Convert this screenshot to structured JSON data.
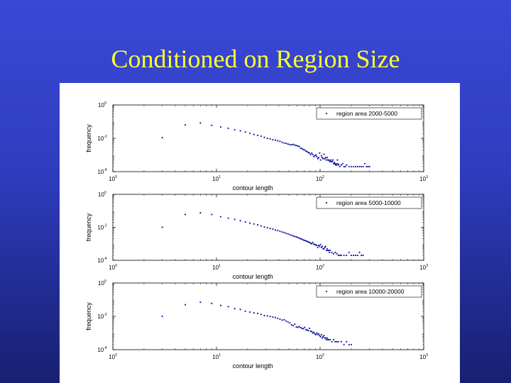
{
  "slide": {
    "title": "Conditioned on Region Size"
  },
  "colors": {
    "marker": "#1a1aa0",
    "axis": "#000000",
    "background_top": "#3a49d6",
    "title": "#ffff33"
  },
  "chart_data": [
    {
      "type": "scatter",
      "scale": "log-log",
      "xlabel": "contour length",
      "ylabel": "frequency",
      "xlim": [
        1,
        1000
      ],
      "ylim": [
        0.0001,
        1
      ],
      "xticks": [
        {
          "base": "10",
          "exp": "0"
        },
        {
          "base": "10",
          "exp": "1"
        },
        {
          "base": "10",
          "exp": "2"
        },
        {
          "base": "10",
          "exp": "3"
        }
      ],
      "yticks": [
        {
          "base": "10",
          "exp": "0"
        },
        {
          "base": "10",
          "exp": "-2"
        },
        {
          "base": "10",
          "exp": "-4"
        }
      ],
      "legend": {
        "label": "region area 2000-5000",
        "location": "top-right"
      },
      "series": [
        {
          "name": "region area 2000-5000",
          "x": [
            3,
            5,
            7,
            9,
            11,
            13,
            15,
            17,
            19,
            21,
            23,
            25,
            27,
            29,
            31,
            33,
            35,
            37,
            39,
            41,
            43,
            45,
            47,
            49,
            51,
            53,
            55,
            57,
            59,
            61,
            63,
            65,
            67,
            69,
            71,
            73,
            75,
            77,
            79,
            81,
            83,
            85,
            87,
            89,
            91,
            93,
            95,
            97,
            99,
            101,
            103,
            105,
            107,
            109,
            111,
            113,
            115,
            117,
            119,
            121,
            123,
            125,
            127,
            129,
            131,
            133,
            135,
            137,
            139,
            141,
            143,
            145,
            147,
            149,
            151,
            155,
            160,
            165,
            170,
            175,
            180,
            190,
            200,
            210,
            220,
            230,
            240,
            250,
            260,
            270,
            280,
            290,
            300
          ],
          "y": [
            0.011,
            0.063,
            0.083,
            0.06,
            0.048,
            0.04,
            0.033,
            0.028,
            0.024,
            0.02,
            0.017,
            0.015,
            0.0135,
            0.0115,
            0.01,
            0.0092,
            0.0082,
            0.0078,
            0.0071,
            0.0066,
            0.0057,
            0.0052,
            0.005,
            0.0045,
            0.0042,
            0.0041,
            0.0043,
            0.0039,
            0.0037,
            0.0034,
            0.0032,
            0.0025,
            0.0024,
            0.0021,
            0.002,
            0.0017,
            0.0016,
            0.0014,
            0.0013,
            0.00105,
            0.0013,
            0.00105,
            0.0008,
            0.0009,
            0.001,
            0.0008,
            0.0006,
            0.0007,
            0.0013,
            0.0005,
            0.0009,
            0.0007,
            0.0006,
            0.0011,
            0.0006,
            0.0007,
            0.0005,
            0.0007,
            0.0005,
            0.0005,
            0.00045,
            0.0004,
            0.0005,
            0.0004,
            0.0004,
            0.0005,
            0.0003,
            0.00035,
            0.0003,
            0.00025,
            0.0003,
            0.00025,
            0.0005,
            0.0003,
            0.00025,
            0.0002,
            0.00025,
            0.0003,
            0.0002,
            0.0002,
            0.00025,
            0.0002,
            0.0002,
            0.0002,
            0.0002,
            0.0002,
            0.0002,
            0.0002,
            0.0002,
            0.0003,
            0.0002,
            0.0002,
            0.0002
          ]
        }
      ]
    },
    {
      "type": "scatter",
      "scale": "log-log",
      "xlabel": "contour length",
      "ylabel": "frequency",
      "xlim": [
        1,
        1000
      ],
      "ylim": [
        0.0001,
        1
      ],
      "xticks": [
        {
          "base": "10",
          "exp": "0"
        },
        {
          "base": "10",
          "exp": "1"
        },
        {
          "base": "10",
          "exp": "2"
        },
        {
          "base": "10",
          "exp": "3"
        }
      ],
      "yticks": [
        {
          "base": "10",
          "exp": "0"
        },
        {
          "base": "10",
          "exp": "-2"
        },
        {
          "base": "10",
          "exp": "-4"
        }
      ],
      "legend": {
        "label": "region area 5000-10000",
        "location": "top-right"
      },
      "series": [
        {
          "name": "region area 5000-10000",
          "x": [
            3,
            5,
            7,
            9,
            11,
            13,
            15,
            17,
            19,
            21,
            23,
            25,
            27,
            29,
            31,
            33,
            35,
            37,
            39,
            41,
            43,
            45,
            47,
            49,
            51,
            53,
            55,
            57,
            59,
            61,
            63,
            65,
            67,
            69,
            71,
            73,
            75,
            77,
            79,
            81,
            83,
            85,
            87,
            89,
            91,
            93,
            95,
            97,
            99,
            101,
            103,
            105,
            107,
            109,
            111,
            113,
            115,
            117,
            119,
            121,
            123,
            125,
            130,
            135,
            140,
            145,
            150,
            155,
            160,
            170,
            180,
            190,
            200,
            210,
            220,
            230,
            240,
            250,
            260
          ],
          "y": [
            0.01,
            0.06,
            0.075,
            0.06,
            0.044,
            0.036,
            0.03,
            0.025,
            0.021,
            0.018,
            0.016,
            0.014,
            0.012,
            0.0105,
            0.0095,
            0.0085,
            0.0078,
            0.007,
            0.0064,
            0.0058,
            0.0052,
            0.0048,
            0.0043,
            0.004,
            0.0036,
            0.0033,
            0.003,
            0.0028,
            0.0026,
            0.0024,
            0.0022,
            0.002,
            0.0019,
            0.0017,
            0.0016,
            0.0015,
            0.0014,
            0.0013,
            0.0012,
            0.0011,
            0.001,
            0.0012,
            0.00095,
            0.0009,
            0.00085,
            0.0008,
            0.0006,
            0.0008,
            0.0007,
            0.0009,
            0.0006,
            0.0007,
            0.0005,
            0.0005,
            0.0006,
            0.0007,
            0.0004,
            0.0005,
            0.0004,
            0.0004,
            0.0003,
            0.0004,
            0.0003,
            0.00025,
            0.0003,
            0.00025,
            0.0002,
            0.0002,
            0.0002,
            0.0002,
            0.0002,
            0.0003,
            0.0002,
            0.0002,
            0.0002,
            0.0002,
            0.0003,
            0.0002,
            0.0002
          ]
        }
      ]
    },
    {
      "type": "scatter",
      "scale": "log-log",
      "xlabel": "contour length",
      "ylabel": "frequency",
      "xlim": [
        1,
        1000
      ],
      "ylim": [
        0.0001,
        1
      ],
      "xticks": [
        {
          "base": "10",
          "exp": "0"
        },
        {
          "base": "10",
          "exp": "1"
        },
        {
          "base": "10",
          "exp": "2"
        },
        {
          "base": "10",
          "exp": "3"
        }
      ],
      "yticks": [
        {
          "base": "10",
          "exp": "0"
        },
        {
          "base": "10",
          "exp": "-2"
        },
        {
          "base": "10",
          "exp": "-4"
        }
      ],
      "legend": {
        "label": "region area 10000-20000",
        "location": "top-right"
      },
      "series": [
        {
          "name": "region area 10000-20000",
          "x": [
            3,
            5,
            7,
            9,
            11,
            13,
            15,
            17,
            19,
            21,
            23,
            25,
            27,
            29,
            31,
            33,
            35,
            37,
            39,
            41,
            43,
            45,
            47,
            49,
            51,
            53,
            55,
            57,
            59,
            61,
            63,
            65,
            67,
            69,
            71,
            73,
            75,
            77,
            79,
            81,
            83,
            85,
            87,
            89,
            91,
            93,
            95,
            97,
            99,
            101,
            103,
            105,
            107,
            109,
            111,
            113,
            115,
            117,
            119,
            121,
            125,
            130,
            135,
            140,
            145,
            150,
            160,
            170,
            180,
            190,
            200
          ],
          "y": [
            0.01,
            0.05,
            0.07,
            0.06,
            0.045,
            0.038,
            0.029,
            0.026,
            0.02,
            0.018,
            0.016,
            0.015,
            0.013,
            0.011,
            0.0105,
            0.0098,
            0.009,
            0.0085,
            0.0075,
            0.0068,
            0.006,
            0.0062,
            0.0052,
            0.0046,
            0.004,
            0.0031,
            0.0028,
            0.0034,
            0.0023,
            0.0022,
            0.0024,
            0.0021,
            0.0019,
            0.0018,
            0.0022,
            0.0016,
            0.0015,
            0.0014,
            0.0019,
            0.0013,
            0.0012,
            0.001,
            0.0011,
            0.0009,
            0.0008,
            0.001,
            0.0008,
            0.0009,
            0.0007,
            0.0006,
            0.0008,
            0.0005,
            0.0006,
            0.0007,
            0.0005,
            0.0005,
            0.0004,
            0.0005,
            0.0004,
            0.0004,
            0.0004,
            0.0003,
            0.0004,
            0.0003,
            0.0003,
            0.0003,
            0.0003,
            0.0002,
            0.0003,
            0.0002,
            0.0002
          ]
        }
      ]
    }
  ]
}
